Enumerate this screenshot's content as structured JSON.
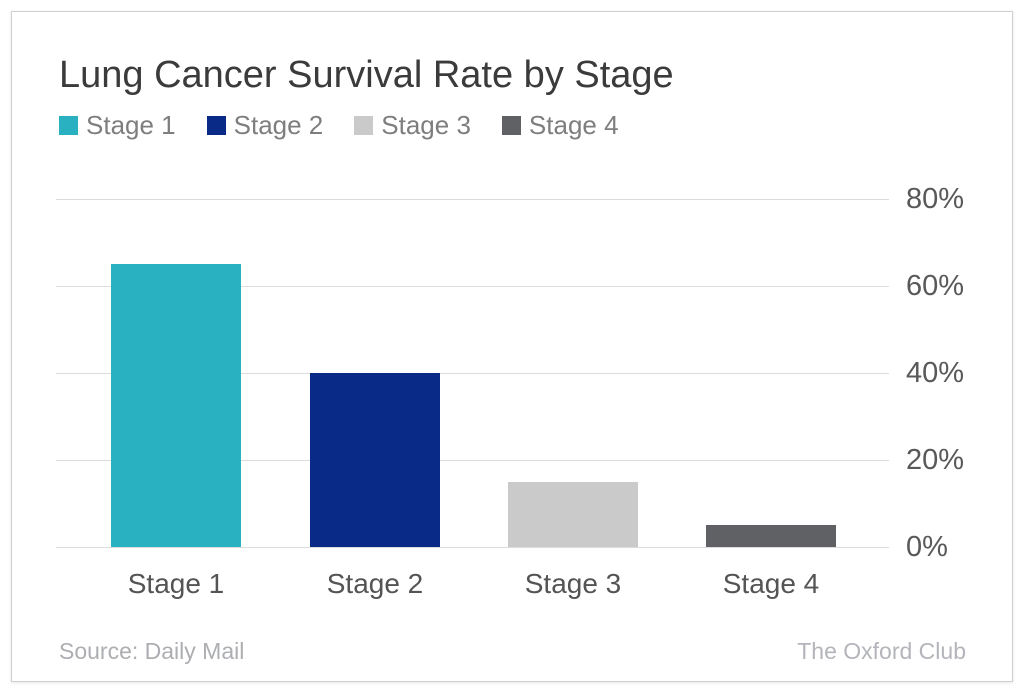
{
  "title": "Lung Cancer Survival Rate by Stage",
  "legend": {
    "items": [
      {
        "label": "Stage 1",
        "color": "#2ab1c1"
      },
      {
        "label": "Stage 2",
        "color": "#0a2a87"
      },
      {
        "label": "Stage 3",
        "color": "#cacaca"
      },
      {
        "label": "Stage 4",
        "color": "#606164"
      }
    ]
  },
  "chart_data": {
    "type": "bar",
    "title": "Lung Cancer Survival Rate by Stage",
    "categories": [
      "Stage 1",
      "Stage 2",
      "Stage 3",
      "Stage 4"
    ],
    "values": [
      65,
      40,
      15,
      5
    ],
    "unit": "%",
    "bar_colors": [
      "#2ab1c1",
      "#0a2a87",
      "#cacaca",
      "#606164"
    ],
    "xlabel": "",
    "ylabel": "",
    "ylim": [
      0,
      80
    ],
    "yticks": [
      0,
      20,
      40,
      60,
      80
    ],
    "ytick_labels": [
      "0%",
      "20%",
      "40%",
      "60%",
      "80%"
    ],
    "grid": true,
    "gridline_color": "#dcdcdc",
    "legend_position": "top-left",
    "y_axis_side": "right"
  },
  "footer": {
    "source": "Source: Daily Mail",
    "brand": "The Oxford Club"
  }
}
